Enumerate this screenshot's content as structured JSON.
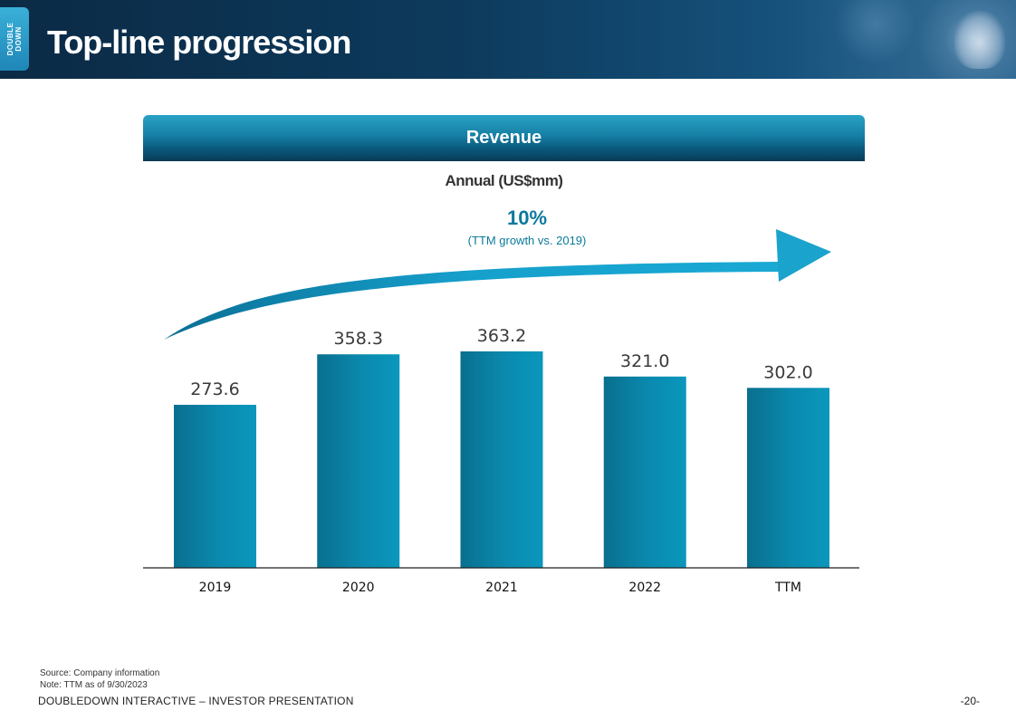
{
  "header": {
    "title": "Top-line progression",
    "logo_line1": "DOUBLE",
    "logo_line2": "DOWN"
  },
  "colors": {
    "header_bg": "#0d3a5c",
    "bar": "#0a88ab",
    "accent_text": "#0b7a9c",
    "arrow": "#1aa3cc"
  },
  "growth": {
    "value": "10%",
    "note": "(TTM growth vs. 2019)"
  },
  "chart_data": {
    "type": "bar",
    "title": "Revenue",
    "subtitle": "Annual (US$mm)",
    "categories": [
      "2019",
      "2020",
      "2021",
      "2022",
      "TTM"
    ],
    "values": [
      273.6,
      358.3,
      363.2,
      321.0,
      302.0
    ],
    "value_labels": [
      "273.6",
      "358.3",
      "363.2",
      "321.0",
      "302.0"
    ],
    "ylim": [
      0,
      363.2
    ],
    "grid": false,
    "legend": "none"
  },
  "footnotes": {
    "source": "Source: Company information",
    "note": "Note: TTM as of 9/30/2023"
  },
  "footer": {
    "left": "DOUBLEDOWN INTERACTIVE – INVESTOR PRESENTATION",
    "page": "-20-"
  }
}
